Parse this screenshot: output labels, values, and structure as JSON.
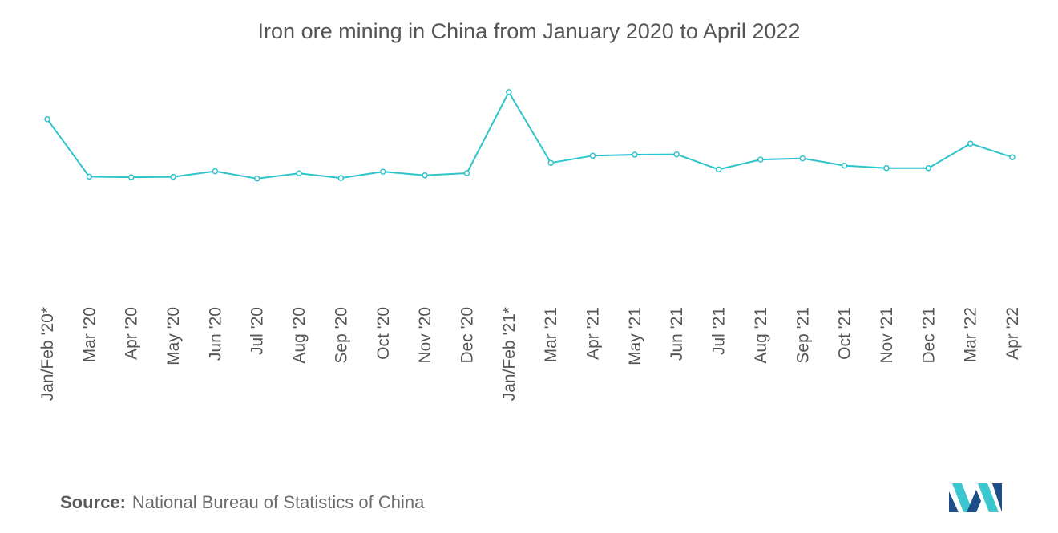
{
  "page": {
    "title": "Iron ore mining in China from January 2020 to April 2022",
    "source_label": "Source:",
    "source_text": "National Bureau of Statistics of China",
    "logo_icon": "mordor-intelligence-logo",
    "colors": {
      "line": "#2ec4cc",
      "marker_fill": "#ffffff",
      "title": "#555555",
      "axis_label": "#555555",
      "logo_dark": "#1d4e89",
      "logo_light": "#3cc6d0"
    }
  },
  "chart_data": {
    "type": "line",
    "title": "Iron ore mining in China from January 2020 to April 2022",
    "xlabel": "",
    "ylabel": "",
    "grid": false,
    "y_axis_visible": false,
    "legend": "none",
    "ylim": [
      0,
      100
    ],
    "categories": [
      "Jan/Feb '20*",
      "Mar '20",
      "Apr '20",
      "May '20",
      "Jun '20",
      "Jul '20",
      "Aug '20",
      "Sep '20",
      "Oct '20",
      "Nov '20",
      "Dec '20",
      "Jan/Feb '21*",
      "Mar '21",
      "Apr '21",
      "May '21",
      "Jun '21",
      "Jul '21",
      "Aug '21",
      "Sep '21",
      "Oct '21",
      "Nov '21",
      "Dec '21",
      "Mar '22",
      "Apr '22"
    ],
    "series": [
      {
        "values": [
          78.2,
          48.6,
          48.3,
          48.5,
          51.4,
          47.6,
          50.3,
          47.9,
          51.2,
          49.3,
          50.4,
          92.2,
          55.7,
          59.4,
          59.9,
          60.1,
          52.3,
          57.4,
          58.0,
          54.3,
          53.0,
          53.0,
          65.6,
          58.6
        ]
      }
    ]
  }
}
